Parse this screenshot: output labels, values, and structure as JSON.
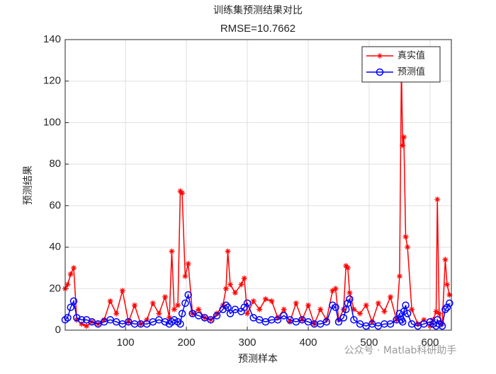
{
  "chart_data": {
    "type": "line",
    "title": "训练集预测结果对比",
    "subtitle": "RMSE=10.7662",
    "xlabel": "预测样本",
    "ylabel": "预测结果",
    "watermark": "公众号 · Matlab科研助手",
    "x": [
      1,
      5,
      10,
      15,
      20,
      28,
      36,
      45,
      55,
      65,
      75,
      85,
      95,
      105,
      115,
      125,
      135,
      145,
      155,
      165,
      172,
      176,
      180,
      186,
      190,
      193,
      198,
      203,
      210,
      220,
      230,
      240,
      250,
      260,
      265,
      268,
      272,
      280,
      290,
      295,
      300,
      310,
      320,
      330,
      340,
      350,
      360,
      370,
      380,
      390,
      400,
      410,
      420,
      430,
      440,
      445,
      450,
      458,
      462,
      465,
      468,
      475,
      485,
      495,
      505,
      515,
      525,
      535,
      545,
      550,
      553,
      555,
      557,
      560,
      563,
      570,
      580,
      590,
      600,
      605,
      610,
      612,
      615,
      620,
      625,
      628,
      632
    ],
    "series": [
      {
        "name": "真实值",
        "color": "#ff0000",
        "marker": "star",
        "values": [
          20,
          22,
          27,
          30,
          5,
          3,
          2,
          4,
          3,
          5,
          14,
          8,
          19,
          4,
          12,
          3,
          5,
          13,
          8,
          16,
          6,
          38,
          10,
          12,
          67,
          66,
          26,
          32,
          8,
          10,
          6,
          5,
          8,
          12,
          20,
          38,
          22,
          18,
          22,
          25,
          8,
          14,
          10,
          15,
          14,
          6,
          10,
          4,
          13,
          5,
          12,
          3,
          10,
          5,
          19,
          20,
          5,
          10,
          31,
          30,
          18,
          10,
          8,
          12,
          4,
          13,
          9,
          16,
          5,
          26,
          128,
          89,
          93,
          45,
          40,
          10,
          3,
          5,
          2,
          5,
          9,
          63,
          8,
          3,
          34,
          22,
          17
        ]
      },
      {
        "name": "预测值",
        "color": "#0000ff",
        "marker": "circle",
        "values": [
          5,
          6,
          11,
          14,
          6,
          5,
          5,
          4,
          3,
          4,
          5,
          4,
          3,
          4,
          3,
          3,
          3,
          4,
          5,
          4,
          3,
          4,
          5,
          4,
          3,
          8,
          13,
          17,
          8,
          7,
          6,
          5,
          7,
          10,
          12,
          11,
          8,
          10,
          9,
          11,
          13,
          6,
          5,
          4,
          5,
          5,
          7,
          5,
          4,
          5,
          4,
          3,
          3,
          4,
          12,
          11,
          4,
          6,
          10,
          13,
          15,
          5,
          3,
          2,
          3,
          2,
          3,
          3,
          5,
          8,
          5,
          4,
          9,
          12,
          8,
          3,
          2,
          3,
          4,
          3,
          2,
          5,
          3,
          2,
          10,
          11,
          13
        ]
      }
    ],
    "xlim": [
      1,
      635
    ],
    "ylim": [
      0,
      140
    ],
    "xticks": [
      100,
      200,
      300,
      400,
      500,
      600
    ],
    "yticks": [
      0,
      20,
      40,
      60,
      80,
      100,
      120,
      140
    ],
    "grid": true,
    "legend": "upper right"
  }
}
